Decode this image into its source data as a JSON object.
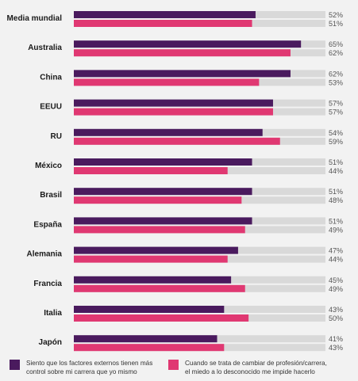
{
  "chart_data": {
    "type": "bar",
    "orientation": "horizontal",
    "categories": [
      "Media mundial",
      "Australia",
      "China",
      "EEUU",
      "RU",
      "México",
      "Brasil",
      "España",
      "Alemania",
      "Francia",
      "Italia",
      "Japón"
    ],
    "series": [
      {
        "name": "Siento que los factores externos tienen más\ncontrol sobre mi carrera que yo mismo",
        "color": "#4a1a5e",
        "values": [
          52,
          65,
          62,
          57,
          54,
          51,
          51,
          51,
          47,
          45,
          43,
          41
        ]
      },
      {
        "name": "Cuando se trata de cambiar de profesión/carrera,\nel miedo a lo desconocido me impide hacerlo",
        "color": "#e03872",
        "values": [
          51,
          62,
          53,
          57,
          59,
          44,
          48,
          49,
          44,
          49,
          50,
          43
        ]
      }
    ],
    "value_suffix": "%",
    "xlim": [
      0,
      72
    ],
    "track_color": "#d9d9d9",
    "grid": false,
    "legend_position": "bottom"
  }
}
